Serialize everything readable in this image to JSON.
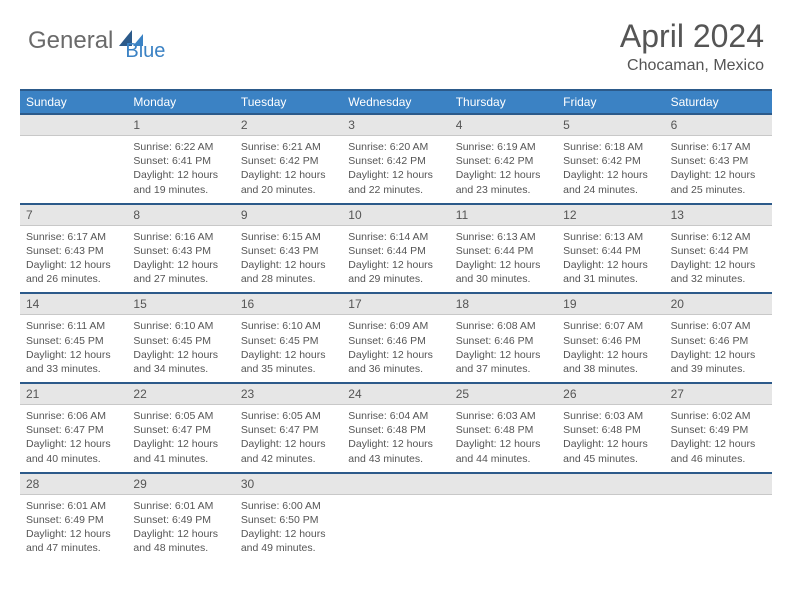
{
  "brand": {
    "part1": "General",
    "part2": "Blue"
  },
  "title": "April 2024",
  "location": "Chocaman, Mexico",
  "colors": {
    "header_bg": "#3b82c4",
    "header_border": "#2c5a8a",
    "daynum_bg": "#e6e6e6",
    "text": "#555555",
    "brand_gray": "#6a6a6a",
    "brand_blue": "#3b82c4"
  },
  "day_names": [
    "Sunday",
    "Monday",
    "Tuesday",
    "Wednesday",
    "Thursday",
    "Friday",
    "Saturday"
  ],
  "weeks": [
    [
      {
        "day": "",
        "sunrise": "",
        "sunset": "",
        "daylight": ""
      },
      {
        "day": "1",
        "sunrise": "Sunrise: 6:22 AM",
        "sunset": "Sunset: 6:41 PM",
        "daylight": "Daylight: 12 hours and 19 minutes."
      },
      {
        "day": "2",
        "sunrise": "Sunrise: 6:21 AM",
        "sunset": "Sunset: 6:42 PM",
        "daylight": "Daylight: 12 hours and 20 minutes."
      },
      {
        "day": "3",
        "sunrise": "Sunrise: 6:20 AM",
        "sunset": "Sunset: 6:42 PM",
        "daylight": "Daylight: 12 hours and 22 minutes."
      },
      {
        "day": "4",
        "sunrise": "Sunrise: 6:19 AM",
        "sunset": "Sunset: 6:42 PM",
        "daylight": "Daylight: 12 hours and 23 minutes."
      },
      {
        "day": "5",
        "sunrise": "Sunrise: 6:18 AM",
        "sunset": "Sunset: 6:42 PM",
        "daylight": "Daylight: 12 hours and 24 minutes."
      },
      {
        "day": "6",
        "sunrise": "Sunrise: 6:17 AM",
        "sunset": "Sunset: 6:43 PM",
        "daylight": "Daylight: 12 hours and 25 minutes."
      }
    ],
    [
      {
        "day": "7",
        "sunrise": "Sunrise: 6:17 AM",
        "sunset": "Sunset: 6:43 PM",
        "daylight": "Daylight: 12 hours and 26 minutes."
      },
      {
        "day": "8",
        "sunrise": "Sunrise: 6:16 AM",
        "sunset": "Sunset: 6:43 PM",
        "daylight": "Daylight: 12 hours and 27 minutes."
      },
      {
        "day": "9",
        "sunrise": "Sunrise: 6:15 AM",
        "sunset": "Sunset: 6:43 PM",
        "daylight": "Daylight: 12 hours and 28 minutes."
      },
      {
        "day": "10",
        "sunrise": "Sunrise: 6:14 AM",
        "sunset": "Sunset: 6:44 PM",
        "daylight": "Daylight: 12 hours and 29 minutes."
      },
      {
        "day": "11",
        "sunrise": "Sunrise: 6:13 AM",
        "sunset": "Sunset: 6:44 PM",
        "daylight": "Daylight: 12 hours and 30 minutes."
      },
      {
        "day": "12",
        "sunrise": "Sunrise: 6:13 AM",
        "sunset": "Sunset: 6:44 PM",
        "daylight": "Daylight: 12 hours and 31 minutes."
      },
      {
        "day": "13",
        "sunrise": "Sunrise: 6:12 AM",
        "sunset": "Sunset: 6:44 PM",
        "daylight": "Daylight: 12 hours and 32 minutes."
      }
    ],
    [
      {
        "day": "14",
        "sunrise": "Sunrise: 6:11 AM",
        "sunset": "Sunset: 6:45 PM",
        "daylight": "Daylight: 12 hours and 33 minutes."
      },
      {
        "day": "15",
        "sunrise": "Sunrise: 6:10 AM",
        "sunset": "Sunset: 6:45 PM",
        "daylight": "Daylight: 12 hours and 34 minutes."
      },
      {
        "day": "16",
        "sunrise": "Sunrise: 6:10 AM",
        "sunset": "Sunset: 6:45 PM",
        "daylight": "Daylight: 12 hours and 35 minutes."
      },
      {
        "day": "17",
        "sunrise": "Sunrise: 6:09 AM",
        "sunset": "Sunset: 6:46 PM",
        "daylight": "Daylight: 12 hours and 36 minutes."
      },
      {
        "day": "18",
        "sunrise": "Sunrise: 6:08 AM",
        "sunset": "Sunset: 6:46 PM",
        "daylight": "Daylight: 12 hours and 37 minutes."
      },
      {
        "day": "19",
        "sunrise": "Sunrise: 6:07 AM",
        "sunset": "Sunset: 6:46 PM",
        "daylight": "Daylight: 12 hours and 38 minutes."
      },
      {
        "day": "20",
        "sunrise": "Sunrise: 6:07 AM",
        "sunset": "Sunset: 6:46 PM",
        "daylight": "Daylight: 12 hours and 39 minutes."
      }
    ],
    [
      {
        "day": "21",
        "sunrise": "Sunrise: 6:06 AM",
        "sunset": "Sunset: 6:47 PM",
        "daylight": "Daylight: 12 hours and 40 minutes."
      },
      {
        "day": "22",
        "sunrise": "Sunrise: 6:05 AM",
        "sunset": "Sunset: 6:47 PM",
        "daylight": "Daylight: 12 hours and 41 minutes."
      },
      {
        "day": "23",
        "sunrise": "Sunrise: 6:05 AM",
        "sunset": "Sunset: 6:47 PM",
        "daylight": "Daylight: 12 hours and 42 minutes."
      },
      {
        "day": "24",
        "sunrise": "Sunrise: 6:04 AM",
        "sunset": "Sunset: 6:48 PM",
        "daylight": "Daylight: 12 hours and 43 minutes."
      },
      {
        "day": "25",
        "sunrise": "Sunrise: 6:03 AM",
        "sunset": "Sunset: 6:48 PM",
        "daylight": "Daylight: 12 hours and 44 minutes."
      },
      {
        "day": "26",
        "sunrise": "Sunrise: 6:03 AM",
        "sunset": "Sunset: 6:48 PM",
        "daylight": "Daylight: 12 hours and 45 minutes."
      },
      {
        "day": "27",
        "sunrise": "Sunrise: 6:02 AM",
        "sunset": "Sunset: 6:49 PM",
        "daylight": "Daylight: 12 hours and 46 minutes."
      }
    ],
    [
      {
        "day": "28",
        "sunrise": "Sunrise: 6:01 AM",
        "sunset": "Sunset: 6:49 PM",
        "daylight": "Daylight: 12 hours and 47 minutes."
      },
      {
        "day": "29",
        "sunrise": "Sunrise: 6:01 AM",
        "sunset": "Sunset: 6:49 PM",
        "daylight": "Daylight: 12 hours and 48 minutes."
      },
      {
        "day": "30",
        "sunrise": "Sunrise: 6:00 AM",
        "sunset": "Sunset: 6:50 PM",
        "daylight": "Daylight: 12 hours and 49 minutes."
      },
      {
        "day": "",
        "sunrise": "",
        "sunset": "",
        "daylight": ""
      },
      {
        "day": "",
        "sunrise": "",
        "sunset": "",
        "daylight": ""
      },
      {
        "day": "",
        "sunrise": "",
        "sunset": "",
        "daylight": ""
      },
      {
        "day": "",
        "sunrise": "",
        "sunset": "",
        "daylight": ""
      }
    ]
  ]
}
